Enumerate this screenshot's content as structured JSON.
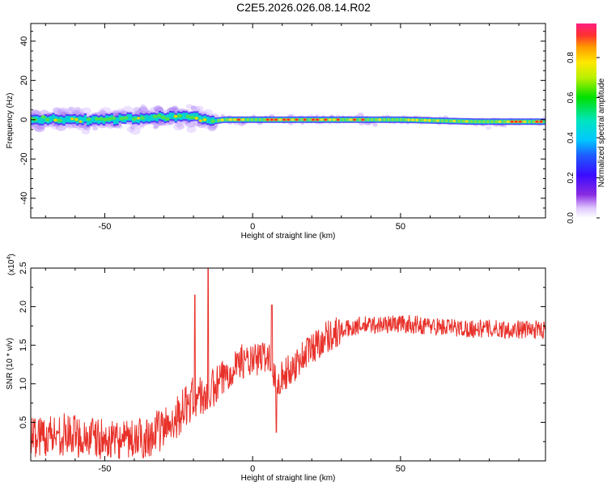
{
  "title": "C2E5.2026.026.08.14.R02",
  "chart_data": [
    {
      "type": "heatmap",
      "name": "spectrogram",
      "xlabel": "Height of straight line (km)",
      "ylabel": "Frequency (Hz)",
      "xlim": [
        -75,
        99
      ],
      "ylim": [
        -50,
        49
      ],
      "xticks": [
        -50,
        0,
        50
      ],
      "xtick_labels": [
        "-50",
        "0",
        "50"
      ],
      "yticks": [
        -40,
        -20,
        0,
        20,
        40
      ],
      "ytick_labels": [
        "-40",
        "-20",
        "0",
        "20",
        "40"
      ],
      "colorbar": {
        "label": "Normalized spectral amplitude",
        "range": [
          0,
          0.97
        ],
        "ticks": [
          0.0,
          0.2,
          0.4,
          0.6,
          0.8
        ],
        "tick_labels": [
          "0.0",
          "0.2",
          "0.4",
          "0.6",
          "0.8"
        ]
      },
      "ridge": {
        "description_points_x": [
          -75,
          -55,
          -35,
          -20,
          -15,
          -10,
          0,
          25,
          50,
          75,
          99
        ],
        "description_points_y": [
          0,
          0,
          1,
          2,
          -1,
          0,
          0,
          0,
          0,
          -1,
          -1
        ]
      }
    },
    {
      "type": "line",
      "name": "snr",
      "xlabel": "Height of straight line (km)",
      "ylabel": "SNR (10 * v/v)",
      "multiplier_label": "(x10",
      "multiplier_exp": "4",
      "multiplier_close": ")",
      "xlim": [
        -75,
        99
      ],
      "ylim": [
        0,
        2.5
      ],
      "xticks": [
        -50,
        0,
        50
      ],
      "xtick_labels": [
        "-50",
        "0",
        "50"
      ],
      "yticks": [
        0.5,
        1.0,
        1.5,
        2.0,
        2.5
      ],
      "ytick_labels": [
        "0.5",
        "1.0",
        "1.5",
        "2.0",
        "2.5"
      ],
      "color": "#e8312a",
      "trend_x": [
        -75,
        -65,
        -55,
        -45,
        -38,
        -30,
        -25,
        -20,
        -15,
        -10,
        -5,
        0,
        5,
        8,
        12,
        18,
        25,
        35,
        50,
        70,
        99
      ],
      "trend_y": [
        0.32,
        0.35,
        0.3,
        0.22,
        0.28,
        0.42,
        0.6,
        0.82,
        0.85,
        1.05,
        1.3,
        1.28,
        1.38,
        1.05,
        1.15,
        1.4,
        1.62,
        1.75,
        1.78,
        1.72,
        1.7
      ],
      "spikes": [
        {
          "x": -19.5,
          "y": 2.15
        },
        {
          "x": -15,
          "y": 2.5
        },
        {
          "x": 6.5,
          "y": 2.02
        },
        {
          "x": 8,
          "y": 0.37
        }
      ]
    }
  ]
}
